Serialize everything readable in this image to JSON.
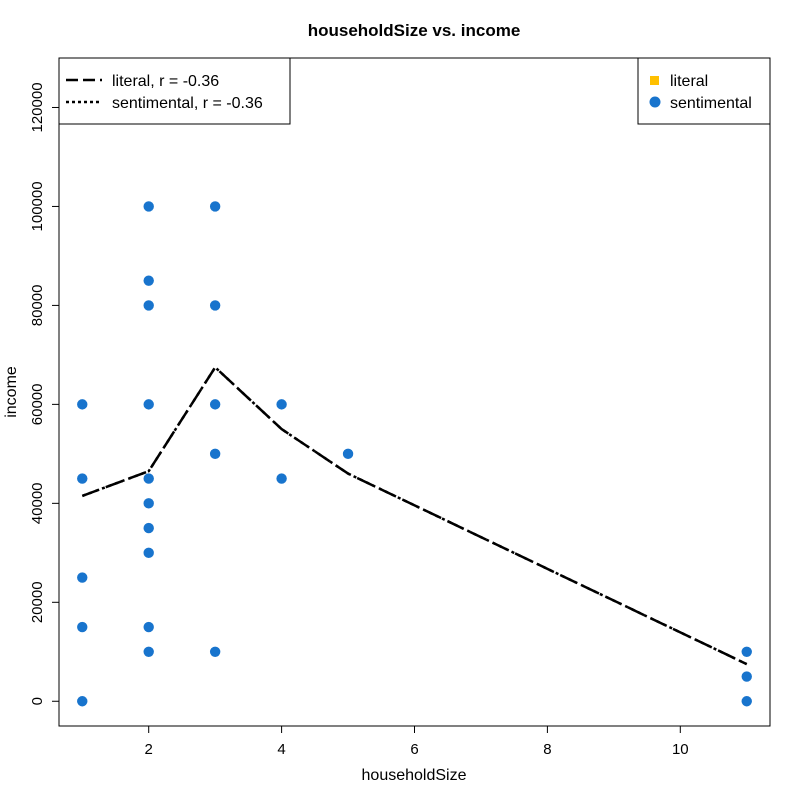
{
  "chart_data": {
    "type": "scatter",
    "title": "householdSize vs. income",
    "xlabel": "householdSize",
    "ylabel": "income",
    "xlim": [
      0.65,
      11.35
    ],
    "ylim": [
      -5000,
      130000
    ],
    "xticks": [
      2,
      4,
      6,
      8,
      10
    ],
    "yticks": [
      0,
      20000,
      40000,
      60000,
      80000,
      100000,
      120000
    ],
    "grid": false,
    "colors": {
      "literal": "#FFC000",
      "sentimental": "#1874CD",
      "line": "#000000"
    },
    "series": [
      {
        "name": "literal",
        "marker": "square",
        "points": []
      },
      {
        "name": "sentimental",
        "marker": "circle",
        "points": [
          [
            1,
            0
          ],
          [
            1,
            15000
          ],
          [
            1,
            25000
          ],
          [
            1,
            45000
          ],
          [
            1,
            60000
          ],
          [
            2,
            10000
          ],
          [
            2,
            15000
          ],
          [
            2,
            30000
          ],
          [
            2,
            35000
          ],
          [
            2,
            40000
          ],
          [
            2,
            45000
          ],
          [
            2,
            60000
          ],
          [
            2,
            80000
          ],
          [
            2,
            85000
          ],
          [
            2,
            100000
          ],
          [
            3,
            10000
          ],
          [
            3,
            50000
          ],
          [
            3,
            60000
          ],
          [
            3,
            80000
          ],
          [
            3,
            100000
          ],
          [
            4,
            45000
          ],
          [
            4,
            60000
          ],
          [
            5,
            50000
          ],
          [
            11,
            0
          ],
          [
            11,
            5000
          ],
          [
            11,
            10000
          ]
        ]
      }
    ],
    "trend_lines": [
      {
        "name": "literal",
        "label": "literal, r = -0.36",
        "style": "dashed",
        "points": [
          [
            1,
            41500
          ],
          [
            2,
            46500
          ],
          [
            3,
            67500
          ],
          [
            4,
            55000
          ],
          [
            5,
            46000
          ],
          [
            11,
            7500
          ]
        ]
      },
      {
        "name": "sentimental",
        "label": "sentimental, r = -0.36",
        "style": "dotted",
        "points": [
          [
            1,
            41500
          ],
          [
            2,
            46500
          ],
          [
            3,
            67500
          ],
          [
            4,
            55000
          ],
          [
            5,
            46000
          ],
          [
            11,
            7500
          ]
        ]
      }
    ],
    "legends": {
      "lines_placement": "top-left",
      "points_placement": "top-right"
    }
  }
}
